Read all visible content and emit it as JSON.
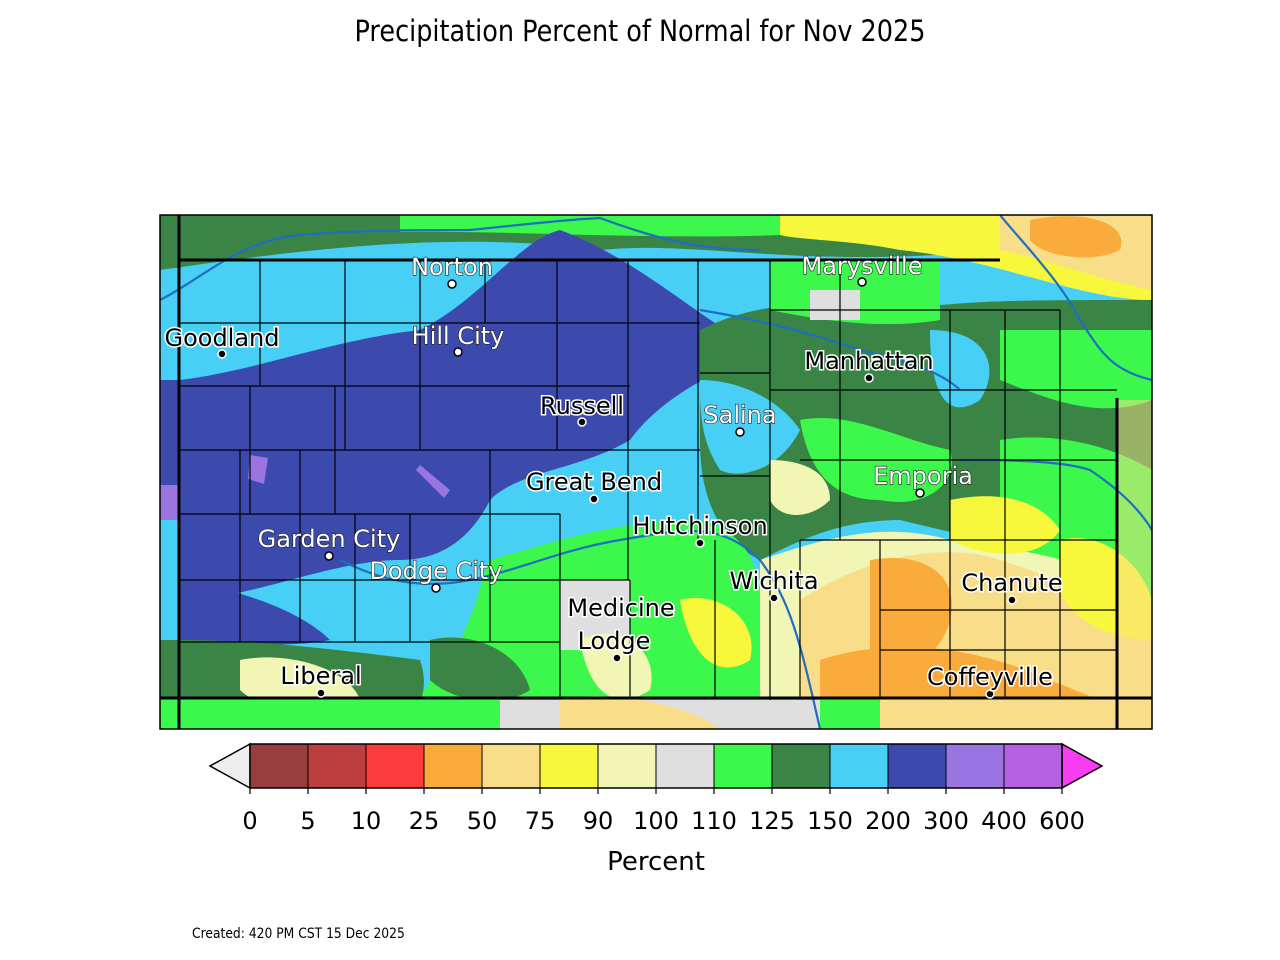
{
  "title": "Precipitation Percent of Normal for Nov 2025",
  "created": "Created: 420 PM CST 15 Dec 2025",
  "colorbar": {
    "label": "Percent",
    "ticks": [
      "0",
      "5",
      "10",
      "25",
      "50",
      "75",
      "90",
      "100",
      "110",
      "125",
      "150",
      "200",
      "300",
      "400",
      "600"
    ],
    "colors": [
      "#983e3e",
      "#bd3e3e",
      "#fb3c3c",
      "#f9ab3c",
      "#f9de8a",
      "#f7f83c",
      "#f1f6b4",
      "#dfdfdf",
      "#3cf84c",
      "#3a8446",
      "#48cff6",
      "#3c4aae",
      "#9a74e0",
      "#b462e2"
    ],
    "under_color": "#eeeeee",
    "over_color": "#f83cf0"
  },
  "cities": [
    {
      "name": "Norton",
      "style": "w"
    },
    {
      "name": "Goodland",
      "style": "b"
    },
    {
      "name": "Hill City",
      "style": "w"
    },
    {
      "name": "Russell",
      "style": "b"
    },
    {
      "name": "Marysville",
      "style": "w"
    },
    {
      "name": "Manhattan",
      "style": "b"
    },
    {
      "name": "Salina",
      "style": "w"
    },
    {
      "name": "Great Bend",
      "style": "b"
    },
    {
      "name": "Emporia",
      "style": "w"
    },
    {
      "name": "Hutchinson",
      "style": "b"
    },
    {
      "name": "Garden City",
      "style": "w"
    },
    {
      "name": "Dodge City",
      "style": "w"
    },
    {
      "name": "Wichita",
      "style": "b"
    },
    {
      "name": "Chanute",
      "style": "b"
    },
    {
      "name": "Medicine",
      "style": "b"
    },
    {
      "name": "Lodge",
      "style": "b"
    },
    {
      "name": "Liberal",
      "style": "b"
    },
    {
      "name": "Coffeyville",
      "style": "b"
    }
  ]
}
